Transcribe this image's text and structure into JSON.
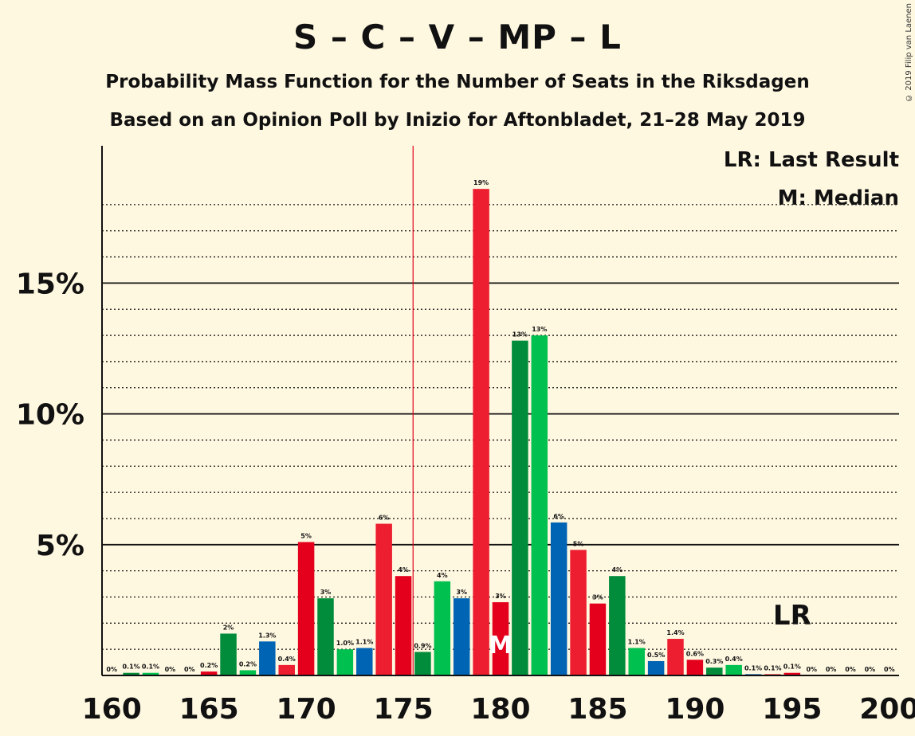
{
  "header": {
    "title": "S – C – V – MP – L",
    "subtitle1": "Probability Mass Function for the Number of Seats in the Riksdagen",
    "subtitle2": "Based on an Opinion Poll by Inizio for Aftonbladet, 21–28 May 2019",
    "copyright": "© 2019 Filip van Laenen"
  },
  "legend": {
    "lr": "LR: Last Result",
    "m": "M: Median",
    "lr_mark": "LR",
    "m_mark": "M"
  },
  "colors": {
    "background": "#fff8e1",
    "s_red": "#e4001c",
    "s_red_light": "#ee1f33",
    "c_green_dark": "#008c3a",
    "c_green_light": "#00c050",
    "mp_blue": "#0064b4",
    "v_red": "#ec1e2f",
    "marker_line": "#e4001c"
  },
  "chart_data": {
    "type": "bar",
    "xlabel": "",
    "ylabel": "",
    "xlim": [
      160,
      200
    ],
    "ylim": [
      0,
      20
    ],
    "x_ticks": [
      160,
      165,
      170,
      175,
      180,
      185,
      190,
      195,
      200
    ],
    "y_ticks": [
      "5%",
      "10%",
      "15%"
    ],
    "y_tick_values": [
      5,
      10,
      15
    ],
    "minor_grid_step": 1,
    "last_result": 195,
    "median": 180,
    "majority_line": 175,
    "x": [
      160,
      161,
      162,
      163,
      164,
      165,
      166,
      167,
      168,
      169,
      170,
      171,
      172,
      173,
      174,
      175,
      176,
      177,
      178,
      179,
      180,
      181,
      182,
      183,
      184,
      185,
      186,
      187,
      188,
      189,
      190,
      191,
      192,
      193,
      194,
      195,
      196,
      197,
      198,
      199,
      200
    ],
    "values": [
      0,
      0.1,
      0.1,
      0,
      0,
      0.15,
      1.6,
      0.2,
      1.3,
      0.4,
      5.1,
      2.95,
      1.0,
      1.05,
      5.8,
      3.8,
      0.9,
      3.6,
      2.95,
      18.6,
      2.8,
      12.8,
      13.0,
      5.85,
      4.8,
      2.75,
      3.8,
      1.05,
      0.55,
      1.4,
      0.6,
      0.3,
      0.4,
      0.05,
      0.05,
      0.1,
      0,
      0,
      0,
      0,
      0
    ],
    "labels": [
      "0%",
      "0.1%",
      "0.1%",
      "0%",
      "0%",
      "0.2%",
      "2%",
      "0.2%",
      "1.3%",
      "0.4%",
      "5%",
      "3%",
      "1.0%",
      "1.1%",
      "6%",
      "4%",
      "0.9%",
      "4%",
      "3%",
      "19%",
      "3%",
      "13%",
      "13%",
      "6%",
      "5%",
      "3%",
      "4%",
      "1.1%",
      "0.5%",
      "1.4%",
      "0.6%",
      "0.3%",
      "0.4%",
      "0.1%",
      "0.1%",
      "0.1%",
      "0%",
      "0%",
      "0%",
      "0%",
      "0%"
    ],
    "bar_colors": [
      "#e4001c",
      "#008c3a",
      "#00c050",
      "#0064b4",
      "#ec1e2f"
    ]
  }
}
